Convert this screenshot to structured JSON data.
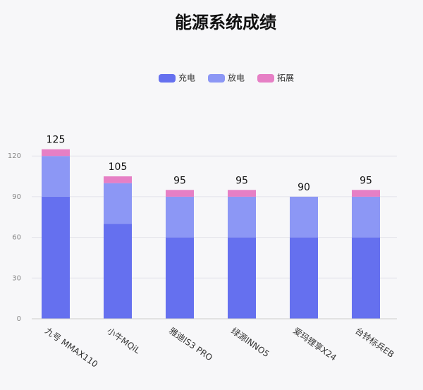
{
  "chart_data": {
    "type": "stacked_bar",
    "title": "能源系统成绩",
    "categories": [
      "九号 MMAX110",
      "小牛MQiL",
      "雅迪IS3 PRO",
      "绿源INNO5",
      "爱玛锂享X24",
      "台铃标兵EB"
    ],
    "series": [
      {
        "name": "充电",
        "color": "#6570ef",
        "values": [
          90,
          70,
          60,
          60,
          60,
          60
        ]
      },
      {
        "name": "放电",
        "color": "#8c97f5",
        "values": [
          30,
          30,
          30,
          30,
          30,
          30
        ]
      },
      {
        "name": "拓展",
        "color": "#e67fc5",
        "values": [
          5,
          5,
          5,
          5,
          0,
          5
        ]
      }
    ],
    "totals": [
      125,
      105,
      95,
      95,
      90,
      95
    ],
    "ylim": [
      0,
      130
    ],
    "yticks": [
      0,
      30,
      60,
      90,
      120
    ],
    "grid": true,
    "legend": "top"
  }
}
